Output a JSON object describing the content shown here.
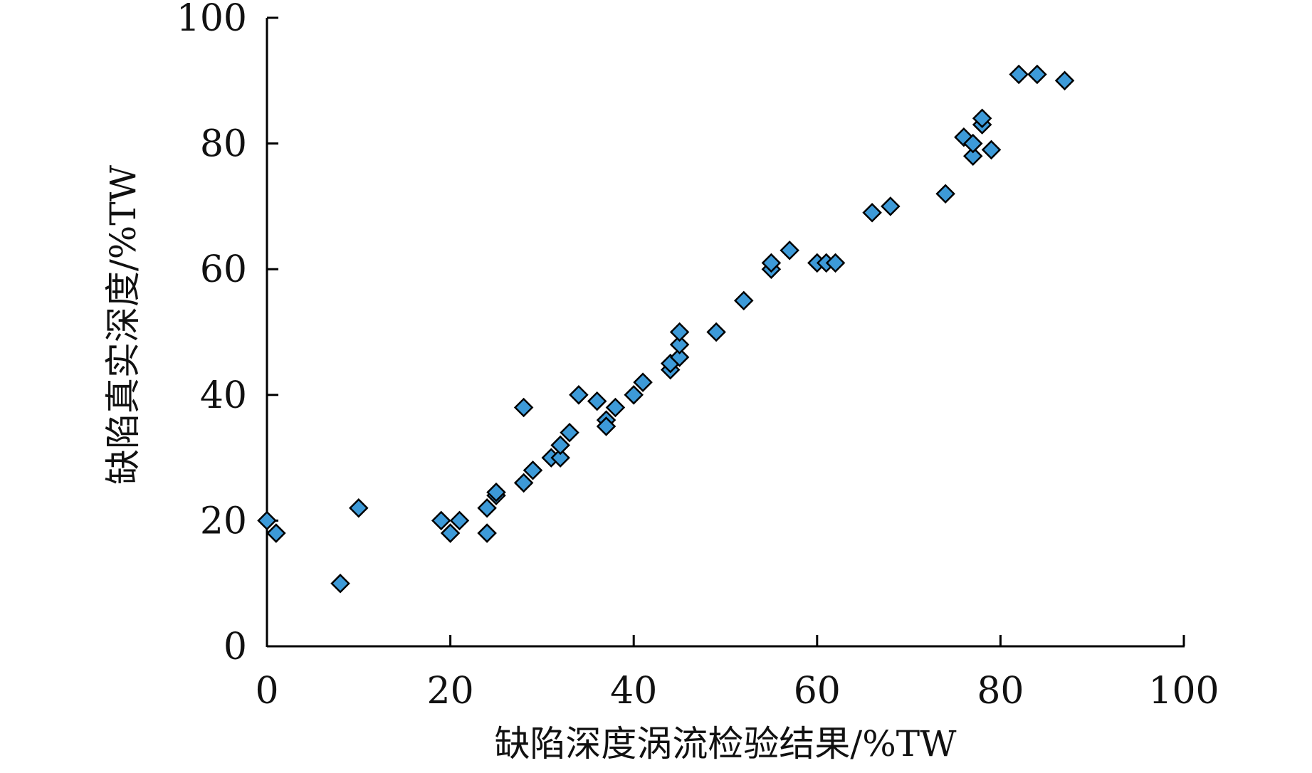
{
  "chart_data": {
    "type": "scatter",
    "title": "",
    "xlabel": "缺陷深度涡流检验结果/%TW",
    "ylabel": "缺陷真实深度/%TW",
    "xlim": [
      0,
      100
    ],
    "ylim": [
      0,
      100
    ],
    "x_ticks": [
      "0",
      "20",
      "40",
      "60",
      "80",
      "100"
    ],
    "y_ticks": [
      "0",
      "20",
      "40",
      "60",
      "80",
      "100"
    ],
    "x_tick_values": [
      0,
      20,
      40,
      60,
      80,
      100
    ],
    "y_tick_values": [
      0,
      20,
      40,
      60,
      80,
      100
    ],
    "grid": false,
    "marker": "diamond",
    "marker_fill": "#3d9ad8",
    "marker_edge": "#000000",
    "axis_color": "#000000",
    "points": [
      [
        0,
        20
      ],
      [
        1,
        18
      ],
      [
        8,
        10
      ],
      [
        10,
        22
      ],
      [
        19,
        20
      ],
      [
        20,
        18
      ],
      [
        21,
        20
      ],
      [
        24,
        18
      ],
      [
        24,
        22
      ],
      [
        25,
        24
      ],
      [
        25,
        24.5
      ],
      [
        28,
        38
      ],
      [
        28,
        26
      ],
      [
        29,
        28
      ],
      [
        31,
        30
      ],
      [
        32,
        30
      ],
      [
        32,
        32
      ],
      [
        33,
        34
      ],
      [
        34,
        40
      ],
      [
        36,
        39
      ],
      [
        37,
        36
      ],
      [
        37,
        35
      ],
      [
        38,
        38
      ],
      [
        40,
        40
      ],
      [
        41,
        42
      ],
      [
        44,
        44
      ],
      [
        44,
        45
      ],
      [
        45,
        46
      ],
      [
        45,
        48
      ],
      [
        45,
        50
      ],
      [
        49,
        50
      ],
      [
        52,
        55
      ],
      [
        55,
        60
      ],
      [
        55,
        61
      ],
      [
        57,
        63
      ],
      [
        60,
        61
      ],
      [
        61,
        61
      ],
      [
        62,
        61
      ],
      [
        66,
        69
      ],
      [
        68,
        70
      ],
      [
        74,
        72
      ],
      [
        76,
        81
      ],
      [
        77,
        78
      ],
      [
        77,
        80
      ],
      [
        78,
        83
      ],
      [
        78,
        84
      ],
      [
        79,
        79
      ],
      [
        82,
        91
      ],
      [
        84,
        91
      ],
      [
        87,
        90
      ]
    ]
  }
}
